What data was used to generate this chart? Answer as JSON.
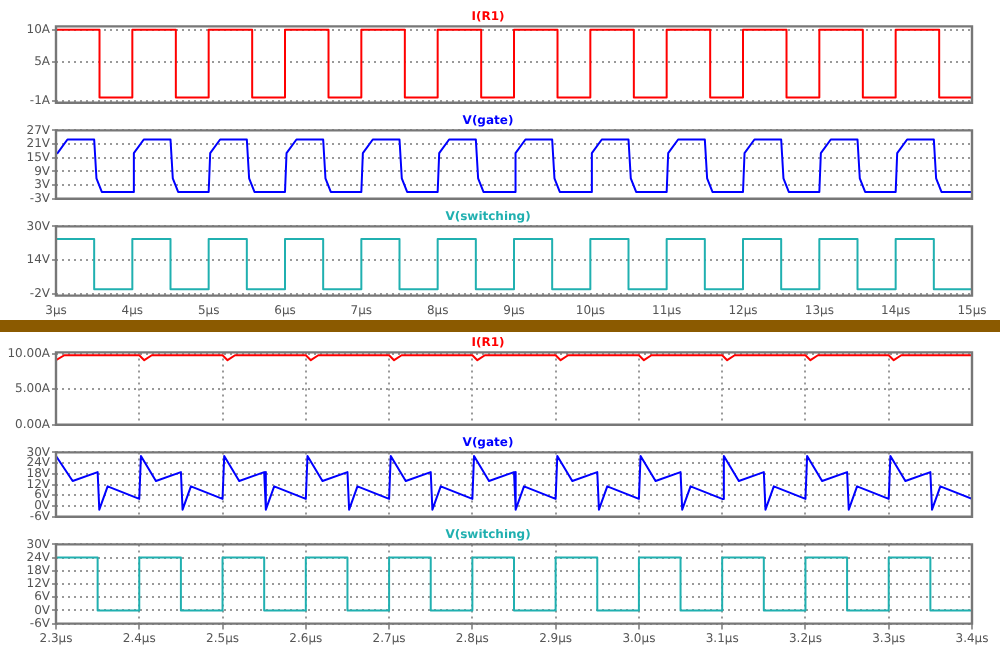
{
  "chart_data": [
    {
      "type": "line",
      "title": "I(R1)",
      "marker": "none",
      "grid": "y",
      "tick_labels": "y",
      "xlim": [
        3,
        15
      ],
      "ylim": [
        -1.3,
        10.5
      ],
      "xticks": [
        {
          "value": 3,
          "label": null
        },
        {
          "value": 4,
          "label": null
        },
        {
          "value": 5,
          "label": null
        },
        {
          "value": 6,
          "label": null
        },
        {
          "value": 7,
          "label": null
        },
        {
          "value": 8,
          "label": null
        },
        {
          "value": 9,
          "label": null
        },
        {
          "value": 10,
          "label": null
        },
        {
          "value": 11,
          "label": null
        },
        {
          "value": 12,
          "label": null
        },
        {
          "value": 13,
          "label": null
        },
        {
          "value": 14,
          "label": null
        },
        {
          "value": 15,
          "label": null
        }
      ],
      "yticks": [
        {
          "value": 10,
          "label": "10A"
        },
        {
          "value": 5,
          "label": "5A"
        },
        {
          "value": -1,
          "label": "-1A"
        }
      ],
      "series": [
        {
          "color": "#ff0000",
          "x": [
            3,
            3.57,
            3.57,
            4,
            4,
            4.57,
            4.57,
            5,
            5,
            5.57,
            5.57,
            6,
            6,
            6.57,
            6.57,
            7,
            7,
            7.57,
            7.57,
            8,
            8,
            8.57,
            8.57,
            9,
            9,
            9.57,
            9.57,
            10,
            10,
            10.57,
            10.57,
            11,
            11,
            11.57,
            11.57,
            12,
            12,
            12.57,
            12.57,
            13,
            13,
            13.57,
            13.57,
            14,
            14,
            14.57,
            14.57,
            15
          ],
          "values": [
            10,
            10,
            -0.5,
            -0.5,
            10,
            10,
            -0.5,
            -0.5,
            10,
            10,
            -0.5,
            -0.5,
            10,
            10,
            -0.5,
            -0.5,
            10,
            10,
            -0.5,
            -0.5,
            10,
            10,
            -0.5,
            -0.5,
            10,
            10,
            -0.5,
            -0.5,
            10,
            10,
            -0.5,
            -0.5,
            10,
            10,
            -0.5,
            -0.5,
            10,
            10,
            -0.5,
            -0.5,
            10,
            10,
            -0.5,
            -0.5,
            10,
            10,
            -0.5,
            -0.5
          ]
        }
      ]
    },
    {
      "type": "line",
      "title": "V(gate)",
      "marker": "none",
      "grid": "y",
      "tick_labels": "y",
      "xlim": [
        3,
        15
      ],
      "ylim": [
        -3,
        27
      ],
      "xticks": [
        {
          "value": 3,
          "label": null
        },
        {
          "value": 4,
          "label": null
        },
        {
          "value": 5,
          "label": null
        },
        {
          "value": 6,
          "label": null
        },
        {
          "value": 7,
          "label": null
        },
        {
          "value": 8,
          "label": null
        },
        {
          "value": 9,
          "label": null
        },
        {
          "value": 10,
          "label": null
        },
        {
          "value": 11,
          "label": null
        },
        {
          "value": 12,
          "label": null
        },
        {
          "value": 13,
          "label": null
        },
        {
          "value": 14,
          "label": null
        },
        {
          "value": 15,
          "label": null
        }
      ],
      "yticks": [
        {
          "value": 27,
          "label": "27V"
        },
        {
          "value": 21,
          "label": "21V"
        },
        {
          "value": 15,
          "label": "15V"
        },
        {
          "value": 9,
          "label": "9V"
        },
        {
          "value": 3,
          "label": "3V"
        },
        {
          "value": -3,
          "label": "-3V"
        }
      ],
      "series": [
        {
          "color": "#0000ff",
          "x": [
            3.02,
            3.15,
            3.5,
            3.53,
            3.6,
            4,
            4.02,
            4.15,
            4.5,
            4.53,
            4.6,
            5,
            5.02,
            5.15,
            5.5,
            5.53,
            5.6,
            6,
            6.02,
            6.15,
            6.5,
            6.53,
            6.6,
            7,
            7.02,
            7.15,
            7.5,
            7.53,
            7.6,
            8,
            8.02,
            8.15,
            8.5,
            8.53,
            8.6,
            9,
            9.02,
            9.15,
            9.5,
            9.53,
            9.6,
            10,
            10.02,
            10.15,
            10.5,
            10.53,
            10.6,
            11,
            11.02,
            11.15,
            11.5,
            11.53,
            11.6,
            12,
            12.02,
            12.15,
            12.5,
            12.53,
            12.6,
            13,
            13.02,
            13.15,
            13.5,
            13.53,
            13.6,
            14,
            14.02,
            14.15,
            14.5,
            14.53,
            14.6,
            15
          ],
          "values": [
            17,
            23,
            23,
            6,
            0,
            0,
            17,
            23,
            23,
            6,
            0,
            0,
            17,
            23,
            23,
            6,
            0,
            0,
            17,
            23,
            23,
            6,
            0,
            0,
            17,
            23,
            23,
            6,
            0,
            0,
            17,
            23,
            23,
            6,
            0,
            0,
            17,
            23,
            23,
            6,
            0,
            0,
            17,
            23,
            23,
            6,
            0,
            0,
            17,
            23,
            23,
            6,
            0,
            0,
            17,
            23,
            23,
            6,
            0,
            0,
            17,
            23,
            23,
            6,
            0,
            0,
            17,
            23,
            23,
            6,
            0,
            0
          ]
        }
      ]
    },
    {
      "type": "line",
      "title": "V(switching)",
      "marker": "none",
      "grid": "y",
      "xlim": [
        3,
        15
      ],
      "ylim": [
        -3,
        30
      ],
      "xticks": [
        {
          "value": 3,
          "label": "3µs"
        },
        {
          "value": 4,
          "label": "4µs"
        },
        {
          "value": 5,
          "label": "5µs"
        },
        {
          "value": 6,
          "label": "6µs"
        },
        {
          "value": 7,
          "label": "7µs"
        },
        {
          "value": 8,
          "label": "8µs"
        },
        {
          "value": 9,
          "label": "9µs"
        },
        {
          "value": 10,
          "label": "10µs"
        },
        {
          "value": 11,
          "label": "11µs"
        },
        {
          "value": 12,
          "label": "12µs"
        },
        {
          "value": 13,
          "label": "13µs"
        },
        {
          "value": 14,
          "label": "14µs"
        },
        {
          "value": 15,
          "label": "15µs"
        }
      ],
      "yticks": [
        {
          "value": 30,
          "label": "30V"
        },
        {
          "value": 14,
          "label": "14V"
        },
        {
          "value": -2,
          "label": "-2V"
        }
      ],
      "series": [
        {
          "color": "#20b0b0",
          "x": [
            3,
            3.5,
            3.5,
            4,
            4,
            4.5,
            4.5,
            5,
            5,
            5.5,
            5.5,
            6,
            6,
            6.5,
            6.5,
            7,
            7,
            7.5,
            7.5,
            8,
            8,
            8.5,
            8.5,
            9,
            9,
            9.5,
            9.5,
            10,
            10,
            10.5,
            10.5,
            11,
            11,
            11.5,
            11.5,
            12,
            12,
            12.5,
            12.5,
            13,
            13,
            13.5,
            13.5,
            14,
            14,
            14.5,
            14.5,
            15
          ],
          "values": [
            24,
            24,
            0,
            0,
            24,
            24,
            0,
            0,
            24,
            24,
            0,
            0,
            24,
            24,
            0,
            0,
            24,
            24,
            0,
            0,
            24,
            24,
            0,
            0,
            24,
            24,
            0,
            0,
            24,
            24,
            0,
            0,
            24,
            24,
            0,
            0,
            24,
            24,
            0,
            0,
            24,
            24,
            0,
            0,
            24,
            24,
            0,
            0
          ]
        }
      ]
    },
    {
      "type": "line",
      "title": "I(R1)",
      "marker": "none",
      "grid": true,
      "tick_labels": "y",
      "xlim": [
        2.3,
        3.4
      ],
      "ylim": [
        0,
        10.2
      ],
      "xticks": [
        {
          "value": 2.3,
          "label": null
        },
        {
          "value": 2.4,
          "label": null
        },
        {
          "value": 2.5,
          "label": null
        },
        {
          "value": 2.6,
          "label": null
        },
        {
          "value": 2.7,
          "label": null
        },
        {
          "value": 2.8,
          "label": null
        },
        {
          "value": 2.9,
          "label": null
        },
        {
          "value": 3,
          "label": null
        },
        {
          "value": 3.1,
          "label": null
        },
        {
          "value": 3.2,
          "label": null
        },
        {
          "value": 3.3,
          "label": null
        },
        {
          "value": 3.4,
          "label": null
        }
      ],
      "yticks": [
        {
          "value": 10,
          "label": "10.00A"
        },
        {
          "value": 5,
          "label": "5.00A"
        },
        {
          "value": 0,
          "label": "0.00A"
        }
      ],
      "series": [
        {
          "color": "#ff0000",
          "x": [
            2.3,
            2.31,
            2.4,
            2.406,
            2.415,
            2.5,
            2.506,
            2.515,
            2.6,
            2.606,
            2.615,
            2.7,
            2.706,
            2.715,
            2.8,
            2.806,
            2.815,
            2.9,
            2.906,
            2.915,
            3,
            3.006,
            3.015,
            3.1,
            3.106,
            3.115,
            3.2,
            3.206,
            3.215,
            3.3,
            3.306,
            3.315,
            3.4
          ],
          "values": [
            9.1,
            9.8,
            9.8,
            9.1,
            9.8,
            9.8,
            9.1,
            9.8,
            9.8,
            9.1,
            9.8,
            9.8,
            9.1,
            9.8,
            9.8,
            9.1,
            9.8,
            9.8,
            9.1,
            9.8,
            9.8,
            9.1,
            9.8,
            9.8,
            9.1,
            9.8,
            9.8,
            9.1,
            9.8,
            9.8,
            9.1,
            9.8,
            9.8
          ]
        }
      ]
    },
    {
      "type": "line",
      "title": "V(gate)",
      "marker": "none",
      "grid": true,
      "tick_labels": "y",
      "xlim": [
        2.3,
        3.4
      ],
      "ylim": [
        -6,
        30
      ],
      "xticks": [
        {
          "value": 2.3,
          "label": null
        },
        {
          "value": 2.4,
          "label": null
        },
        {
          "value": 2.5,
          "label": null
        },
        {
          "value": 2.6,
          "label": null
        },
        {
          "value": 2.7,
          "label": null
        },
        {
          "value": 2.8,
          "label": null
        },
        {
          "value": 2.9,
          "label": null
        },
        {
          "value": 3,
          "label": null
        },
        {
          "value": 3.1,
          "label": null
        },
        {
          "value": 3.2,
          "label": null
        },
        {
          "value": 3.3,
          "label": null
        },
        {
          "value": 3.4,
          "label": null
        }
      ],
      "yticks": [
        {
          "value": 30,
          "label": "30V"
        },
        {
          "value": 24,
          "label": "24V"
        },
        {
          "value": 18,
          "label": "18V"
        },
        {
          "value": 12,
          "label": "12V"
        },
        {
          "value": 6,
          "label": "6V"
        },
        {
          "value": 0,
          "label": "0V"
        },
        {
          "value": -6,
          "label": "-6V"
        }
      ],
      "series": [
        {
          "color": "#0000ff",
          "x": [
            2.3,
            2.32,
            2.35,
            2.352,
            2.362,
            2.4,
            2.402,
            2.42,
            2.45,
            2.452,
            2.462,
            2.5,
            2.502,
            2.52,
            2.55,
            2.552,
            2.562,
            2.6,
            2.602,
            2.62,
            2.65,
            2.652,
            2.662,
            2.7,
            2.702,
            2.72,
            2.75,
            2.752,
            2.762,
            2.8,
            2.802,
            2.82,
            2.85,
            2.852,
            2.862,
            2.9,
            2.902,
            2.92,
            2.95,
            2.952,
            2.962,
            3,
            3.002,
            3.02,
            3.05,
            3.052,
            3.062,
            3.1,
            3.102,
            3.12,
            3.15,
            3.152,
            3.162,
            3.2,
            3.202,
            3.22,
            3.25,
            3.252,
            3.262,
            3.3,
            3.302,
            3.32,
            3.35,
            3.352,
            3.362,
            3.4
          ],
          "values": [
            28,
            14,
            19,
            -2,
            11,
            4,
            28,
            14,
            19,
            -2,
            11,
            4,
            28,
            14,
            19,
            -2,
            11,
            4,
            28,
            14,
            19,
            -2,
            11,
            4,
            28,
            14,
            19,
            -2,
            11,
            4,
            28,
            14,
            19,
            -2,
            11,
            4,
            28,
            14,
            19,
            -2,
            11,
            4,
            28,
            14,
            19,
            -2,
            11,
            4,
            28,
            14,
            19,
            -2,
            11,
            4,
            28,
            14,
            19,
            -2,
            11,
            4,
            28,
            14,
            19,
            -2,
            11,
            4
          ]
        }
      ]
    },
    {
      "type": "line",
      "title": "V(switching)",
      "marker": "none",
      "grid": true,
      "xlim": [
        2.3,
        3.4
      ],
      "ylim": [
        -6,
        30
      ],
      "xticks": [
        {
          "value": 2.3,
          "label": "2.3µs"
        },
        {
          "value": 2.4,
          "label": "2.4µs"
        },
        {
          "value": 2.5,
          "label": "2.5µs"
        },
        {
          "value": 2.6,
          "label": "2.6µs"
        },
        {
          "value": 2.7,
          "label": "2.7µs"
        },
        {
          "value": 2.8,
          "label": "2.8µs"
        },
        {
          "value": 2.9,
          "label": "2.9µs"
        },
        {
          "value": 3,
          "label": "3.0µs"
        },
        {
          "value": 3.1,
          "label": "3.1µs"
        },
        {
          "value": 3.2,
          "label": "3.2µs"
        },
        {
          "value": 3.3,
          "label": "3.3µs"
        },
        {
          "value": 3.4,
          "label": "3.4µs"
        }
      ],
      "yticks": [
        {
          "value": 30,
          "label": "30V"
        },
        {
          "value": 24,
          "label": "24V"
        },
        {
          "value": 18,
          "label": "18V"
        },
        {
          "value": 12,
          "label": "12V"
        },
        {
          "value": 6,
          "label": "6V"
        },
        {
          "value": 0,
          "label": "0V"
        },
        {
          "value": -6,
          "label": "-6V"
        }
      ],
      "series": [
        {
          "color": "#20b0b0",
          "x": [
            2.3,
            2.35,
            2.35,
            2.4,
            2.4,
            2.45,
            2.45,
            2.5,
            2.5,
            2.55,
            2.55,
            2.6,
            2.6,
            2.65,
            2.65,
            2.7,
            2.7,
            2.75,
            2.75,
            2.8,
            2.8,
            2.85,
            2.85,
            2.9,
            2.9,
            2.95,
            2.95,
            3,
            3,
            3.05,
            3.05,
            3.1,
            3.1,
            3.15,
            3.15,
            3.2,
            3.2,
            3.25,
            3.25,
            3.3,
            3.3,
            3.35,
            3.35,
            3.4
          ],
          "values": [
            24,
            24,
            0,
            0,
            24,
            24,
            0,
            0,
            24,
            24,
            0,
            0,
            24,
            24,
            0,
            0,
            24,
            24,
            0,
            0,
            24,
            24,
            0,
            0,
            24,
            24,
            0,
            0,
            24,
            24,
            0,
            0,
            24,
            24,
            0,
            0,
            24,
            24,
            0,
            0,
            24,
            24,
            0,
            0
          ]
        }
      ]
    }
  ]
}
